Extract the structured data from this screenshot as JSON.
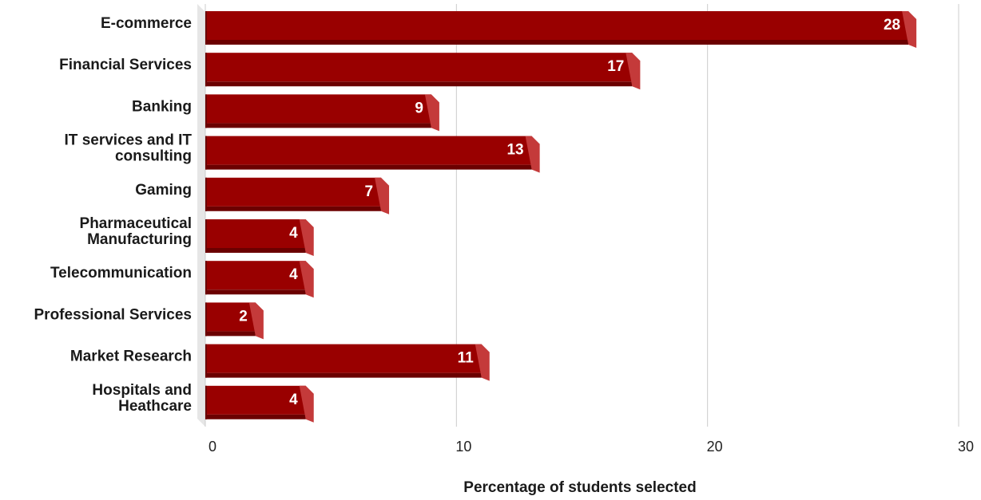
{
  "chart_data": {
    "type": "bar",
    "orientation": "horizontal",
    "style": "3d",
    "categories": [
      [
        "E-commerce"
      ],
      [
        "Financial Services"
      ],
      [
        "Banking"
      ],
      [
        "IT services and IT",
        "consulting"
      ],
      [
        "Gaming"
      ],
      [
        "Pharmaceutical",
        "Manufacturing"
      ],
      [
        "Telecommunication"
      ],
      [
        "Professional Services"
      ],
      [
        "Market Research"
      ],
      [
        "Hospitals and",
        "Heathcare"
      ]
    ],
    "values": [
      28,
      17,
      9,
      13,
      7,
      4,
      4,
      2,
      11,
      4
    ],
    "data_labels": [
      "28",
      "17",
      "9",
      "13",
      "7",
      "4",
      "4",
      "2",
      "11",
      "4"
    ],
    "xlabel": "Percentage of students selected",
    "ylabel": "",
    "xlim": [
      0,
      30
    ],
    "xticks": [
      "0",
      "10",
      "20",
      "30"
    ],
    "grid": true,
    "legend": "none",
    "colors": {
      "bar_front": "#990000",
      "bar_top": "#6b0000",
      "bar_side": "#c43a3a",
      "floor": "#e6e6e6",
      "grid": "#cccccc"
    }
  }
}
